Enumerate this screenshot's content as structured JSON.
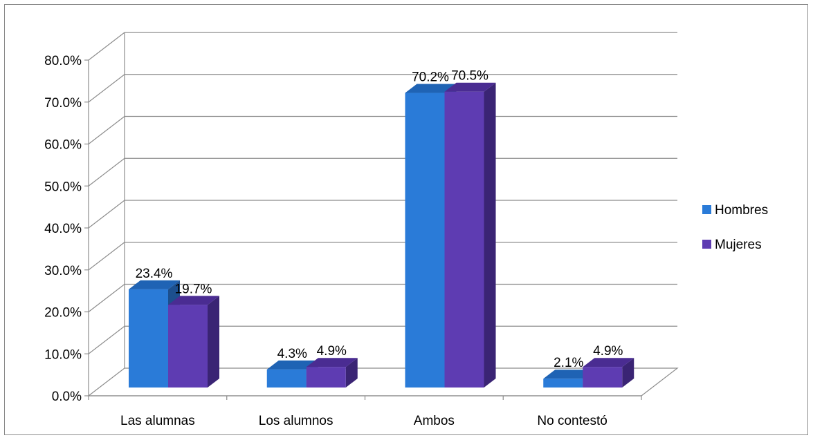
{
  "chart_data": {
    "type": "bar",
    "style": "3d-clustered-column",
    "categories": [
      "Las alumnas",
      "Los alumnos",
      "Ambos",
      "No contestó"
    ],
    "series": [
      {
        "name": "Hombres",
        "values": [
          23.4,
          4.3,
          70.2,
          2.1
        ],
        "labels": [
          "23.4%",
          "4.3%",
          "70.2%",
          "2.1%"
        ],
        "color": "#2A7BD8",
        "top": "#1F63B4",
        "side": "#1C4F8E"
      },
      {
        "name": "Mujeres",
        "values": [
          19.7,
          4.9,
          70.5,
          4.9
        ],
        "labels": [
          "19.7%",
          "4.9%",
          "70.5%",
          "4.9%"
        ],
        "color": "#5E3CB2",
        "top": "#4A2C92",
        "side": "#3A2474"
      }
    ],
    "yticks": [
      "0.0%",
      "10.0%",
      "20.0%",
      "30.0%",
      "40.0%",
      "50.0%",
      "60.0%",
      "70.0%",
      "80.0%"
    ],
    "ylim": [
      0,
      80
    ],
    "grid": true,
    "legend_position": "right"
  }
}
